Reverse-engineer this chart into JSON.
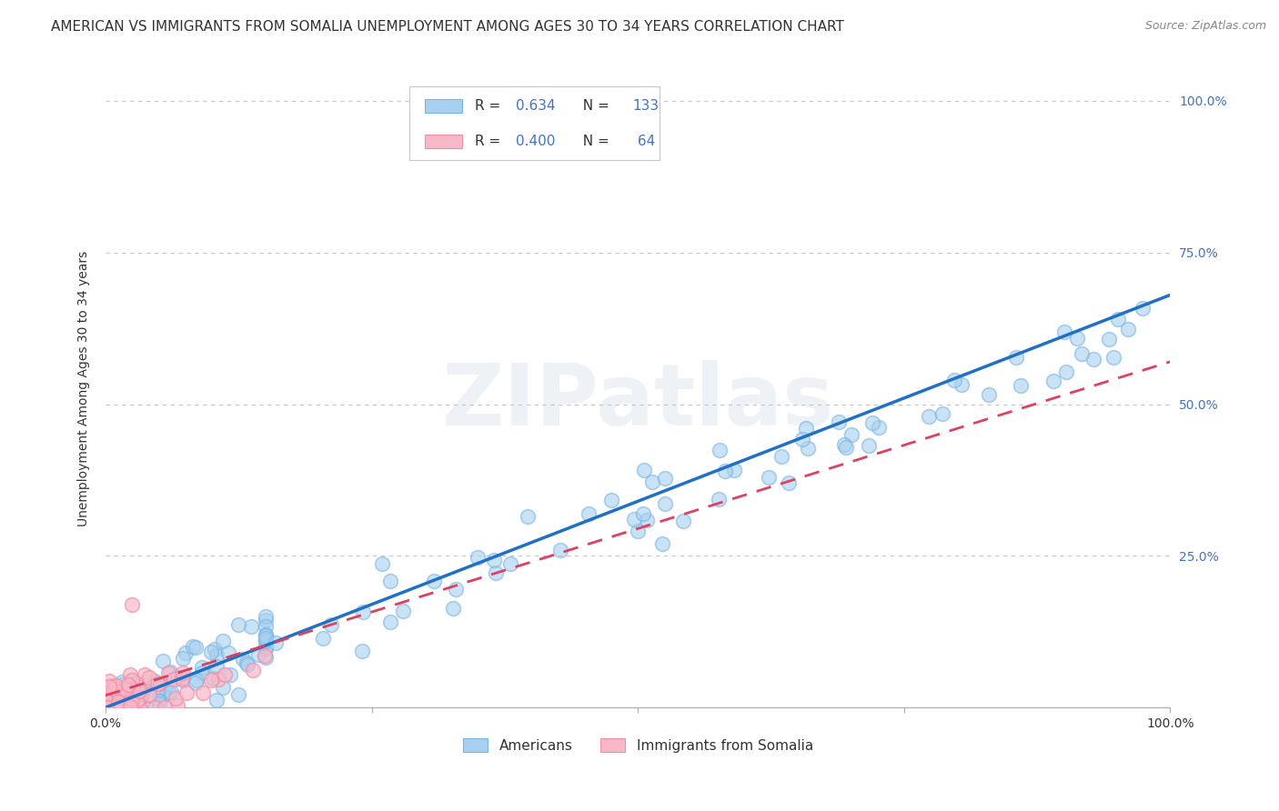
{
  "title": "AMERICAN VS IMMIGRANTS FROM SOMALIA UNEMPLOYMENT AMONG AGES 30 TO 34 YEARS CORRELATION CHART",
  "source": "Source: ZipAtlas.com",
  "ylabel": "Unemployment Among Ages 30 to 34 years",
  "legend_R_american": "0.634",
  "legend_N_american": "133",
  "legend_R_somalia": "0.400",
  "legend_N_somalia": "64",
  "american_color": "#a8d0f0",
  "american_edge_color": "#7ab5e0",
  "somalia_color": "#f8b8c8",
  "somalia_edge_color": "#f090a8",
  "trendline_american_color": "#2070c8",
  "trendline_somalia_color": "#e04060",
  "watermark": "ZIPatlas",
  "background_color": "#ffffff",
  "grid_color": "#c8c8c8",
  "title_fontsize": 11,
  "axis_label_fontsize": 10,
  "tick_fontsize": 10,
  "legend_value_color": "#4472c4",
  "right_tick_color": "#4472c4"
}
